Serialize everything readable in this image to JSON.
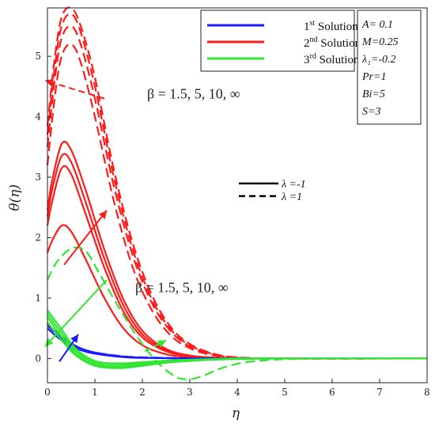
{
  "chart_data": {
    "type": "line",
    "title": "",
    "xlabel": "η",
    "ylabel": "θ(η)",
    "xlim": [
      0,
      8
    ],
    "ylim": [
      -0.4,
      5.8
    ],
    "x_ticks": [
      "0",
      "1",
      "2",
      "3",
      "4",
      "5",
      "6",
      "7",
      "8"
    ],
    "y_ticks": [
      "0",
      "1",
      "2",
      "3",
      "4",
      "5"
    ],
    "grid": false,
    "legend": {
      "placement": "top-right",
      "solutions": [
        {
          "prefix": "1",
          "sup": "st",
          "suffix": " Solution",
          "color": "#1a1aff"
        },
        {
          "prefix": "2",
          "sup": "nd",
          "suffix": " Solution",
          "color": "#ff1a1a"
        },
        {
          "prefix": "3",
          "sup": "rd",
          "suffix": " Solution",
          "color": "#33e633"
        }
      ],
      "styles": [
        {
          "style": "solid",
          "label": "λ =-1"
        },
        {
          "style": "dashed",
          "label": "λ =1"
        }
      ]
    },
    "parameters": [
      "A= 0.1",
      "M=0.25",
      "λ₁=-0.2",
      "Pr=1",
      "Bi=5",
      "S=3"
    ],
    "annotations": [
      {
        "text": "β = 1.5, 5, 10, ∞",
        "x": 2.0,
        "y": 4.3
      },
      {
        "text": "β = 1.5, 5, 10, ∞",
        "x": 1.75,
        "y": 1.1
      }
    ],
    "arrows": [
      {
        "color": "#ff1a1a",
        "from": [
          1.2,
          4.3
        ],
        "to": [
          -0.05,
          4.6
        ],
        "dashed": true
      },
      {
        "color": "#ff1a1a",
        "from": [
          0.35,
          1.55
        ],
        "to": [
          1.25,
          2.45
        ],
        "dashed": false
      },
      {
        "color": "#33e633",
        "from": [
          1.25,
          1.3
        ],
        "to": [
          -0.05,
          0.2
        ],
        "dashed": false
      },
      {
        "color": "#33e633",
        "from": [
          2.05,
          0.12
        ],
        "to": [
          2.5,
          0.3
        ],
        "dashed": true
      },
      {
        "color": "#1a1aff",
        "from": [
          0.25,
          -0.05
        ],
        "to": [
          0.65,
          0.4
        ],
        "dashed": false
      }
    ],
    "series": [
      {
        "solution": 1,
        "color": "#1a1aff",
        "style": "solid",
        "beta": 1.5,
        "x": [
          0,
          0.2,
          0.4,
          0.7,
          1.0,
          1.5,
          2.0,
          3.0,
          4.0,
          8.0
        ],
        "y": [
          0.58,
          0.42,
          0.3,
          0.17,
          0.1,
          0.04,
          0.015,
          0.003,
          0.0,
          0.0
        ]
      },
      {
        "solution": 1,
        "color": "#1a1aff",
        "style": "solid",
        "beta": 5,
        "x": [
          0,
          0.2,
          0.4,
          0.7,
          1.0,
          1.5,
          2.0,
          3.0,
          4.0,
          8.0
        ],
        "y": [
          0.5,
          0.36,
          0.25,
          0.14,
          0.08,
          0.03,
          0.01,
          0.002,
          0.0,
          0.0
        ]
      },
      {
        "solution": 1,
        "color": "#1a1aff",
        "style": "dashed",
        "beta": 1.5,
        "x": [
          0,
          0.2,
          0.4,
          0.7,
          1.0,
          1.5,
          2.0,
          3.0,
          4.0,
          8.0
        ],
        "y": [
          0.55,
          0.4,
          0.28,
          0.16,
          0.1,
          0.045,
          0.02,
          0.005,
          0.0,
          0.0
        ]
      },
      {
        "solution": 2,
        "color": "#ff1a1a",
        "style": "solid",
        "beta": 1.5,
        "x": [
          0,
          0.1,
          0.3,
          0.5,
          0.8,
          1.2,
          1.6,
          2.0,
          2.5,
          3.0,
          3.5,
          4.0,
          5.0,
          8.0
        ],
        "y": [
          1.75,
          1.95,
          2.2,
          2.1,
          1.65,
          1.0,
          0.5,
          0.22,
          0.07,
          0.02,
          0.005,
          0.0,
          0.0,
          0.0
        ]
      },
      {
        "solution": 2,
        "color": "#ff1a1a",
        "style": "solid",
        "beta": 5,
        "x": [
          0,
          0.1,
          0.3,
          0.5,
          0.8,
          1.2,
          1.6,
          2.0,
          2.5,
          3.0,
          3.5,
          4.0,
          5.0,
          8.0
        ],
        "y": [
          2.2,
          2.6,
          3.15,
          3.05,
          2.4,
          1.5,
          0.78,
          0.35,
          0.12,
          0.04,
          0.01,
          0.0,
          0.0,
          0.0
        ]
      },
      {
        "solution": 2,
        "color": "#ff1a1a",
        "style": "solid",
        "beta": 10,
        "x": [
          0,
          0.1,
          0.3,
          0.5,
          0.8,
          1.2,
          1.6,
          2.0,
          2.5,
          3.0,
          3.5,
          4.0,
          5.0,
          8.0
        ],
        "y": [
          2.35,
          2.8,
          3.35,
          3.25,
          2.6,
          1.65,
          0.88,
          0.4,
          0.14,
          0.045,
          0.012,
          0.0,
          0.0,
          0.0
        ]
      },
      {
        "solution": 2,
        "color": "#ff1a1a",
        "style": "solid",
        "beta": "∞",
        "x": [
          0,
          0.1,
          0.3,
          0.5,
          0.8,
          1.2,
          1.6,
          2.0,
          2.5,
          3.0,
          3.5,
          4.0,
          5.0,
          8.0
        ],
        "y": [
          2.45,
          2.95,
          3.55,
          3.45,
          2.8,
          1.8,
          0.98,
          0.46,
          0.16,
          0.05,
          0.015,
          0.0,
          0.0,
          0.0
        ]
      },
      {
        "solution": 2,
        "color": "#ff1a1a",
        "style": "dashed",
        "beta": 1.5,
        "x": [
          0,
          0.15,
          0.3,
          0.5,
          0.7,
          1.0,
          1.4,
          1.8,
          2.2,
          2.6,
          3.0,
          3.5,
          4.0,
          5.0,
          8.0
        ],
        "y": [
          3.2,
          4.3,
          5.0,
          5.2,
          4.9,
          4.0,
          2.6,
          1.5,
          0.8,
          0.38,
          0.17,
          0.05,
          0.01,
          0.0,
          0.0
        ]
      },
      {
        "solution": 2,
        "color": "#ff1a1a",
        "style": "dashed",
        "beta": 5,
        "x": [
          0,
          0.15,
          0.3,
          0.5,
          0.7,
          1.0,
          1.4,
          1.8,
          2.2,
          2.6,
          3.0,
          3.5,
          4.0,
          5.0,
          8.0
        ],
        "y": [
          3.5,
          4.6,
          5.3,
          5.5,
          5.2,
          4.3,
          2.85,
          1.7,
          0.92,
          0.45,
          0.2,
          0.06,
          0.015,
          0.0,
          0.0
        ]
      },
      {
        "solution": 2,
        "color": "#ff1a1a",
        "style": "dashed",
        "beta": 10,
        "x": [
          0,
          0.15,
          0.3,
          0.5,
          0.7,
          1.0,
          1.4,
          1.8,
          2.2,
          2.6,
          3.0,
          3.5,
          4.0,
          5.0,
          8.0
        ],
        "y": [
          3.7,
          4.8,
          5.5,
          5.7,
          5.4,
          4.5,
          3.0,
          1.8,
          0.98,
          0.48,
          0.22,
          0.07,
          0.015,
          0.0,
          0.0
        ]
      },
      {
        "solution": 2,
        "color": "#ff1a1a",
        "style": "dashed",
        "beta": "∞",
        "x": [
          0,
          0.15,
          0.3,
          0.5,
          0.7,
          1.0,
          1.4,
          1.8,
          2.2,
          2.6,
          3.0,
          3.5,
          4.0,
          5.0,
          8.0
        ],
        "y": [
          3.85,
          4.95,
          5.65,
          5.8,
          5.5,
          4.65,
          3.12,
          1.9,
          1.05,
          0.52,
          0.24,
          0.08,
          0.02,
          0.0,
          0.0
        ]
      },
      {
        "solution": 3,
        "color": "#33e633",
        "style": "solid",
        "beta": 1.5,
        "x": [
          0,
          0.3,
          0.6,
          1.0,
          1.5,
          2.0,
          2.5,
          3.0,
          3.5,
          4.0,
          5.0,
          8.0
        ],
        "y": [
          0.6,
          0.3,
          0.05,
          -0.12,
          -0.16,
          -0.12,
          -0.07,
          -0.04,
          -0.02,
          -0.01,
          0.0,
          0.0
        ]
      },
      {
        "solution": 3,
        "color": "#33e633",
        "style": "solid",
        "beta": 5,
        "x": [
          0,
          0.3,
          0.6,
          1.0,
          1.5,
          2.0,
          2.5,
          3.0,
          3.5,
          4.0,
          5.0,
          8.0
        ],
        "y": [
          0.68,
          0.36,
          0.08,
          -0.1,
          -0.14,
          -0.1,
          -0.06,
          -0.03,
          -0.015,
          -0.005,
          0.0,
          0.0
        ]
      },
      {
        "solution": 3,
        "color": "#33e633",
        "style": "solid",
        "beta": 10,
        "x": [
          0,
          0.3,
          0.6,
          1.0,
          1.5,
          2.0,
          2.5,
          3.0,
          3.5,
          4.0,
          5.0,
          8.0
        ],
        "y": [
          0.74,
          0.42,
          0.12,
          -0.07,
          -0.11,
          -0.08,
          -0.05,
          -0.025,
          -0.01,
          0.0,
          0.0,
          0.0
        ]
      },
      {
        "solution": 3,
        "color": "#33e633",
        "style": "solid",
        "beta": "∞",
        "x": [
          0,
          0.3,
          0.6,
          1.0,
          1.5,
          2.0,
          2.5,
          3.0,
          3.5,
          4.0,
          5.0,
          8.0
        ],
        "y": [
          0.8,
          0.48,
          0.16,
          -0.04,
          -0.08,
          -0.06,
          -0.035,
          -0.02,
          -0.008,
          0.0,
          0.0,
          0.0
        ]
      },
      {
        "solution": 3,
        "color": "#33e633",
        "style": "dashed",
        "beta": 1.5,
        "x": [
          0,
          0.2,
          0.5,
          0.8,
          1.1,
          1.5,
          1.9,
          2.3,
          2.7,
          3.0,
          3.3,
          3.7,
          4.2,
          5.0,
          6.0,
          8.0
        ],
        "y": [
          1.3,
          1.6,
          1.82,
          1.78,
          1.4,
          0.85,
          0.35,
          -0.05,
          -0.3,
          -0.34,
          -0.28,
          -0.15,
          -0.06,
          -0.01,
          0.0,
          0.0
        ]
      }
    ]
  }
}
